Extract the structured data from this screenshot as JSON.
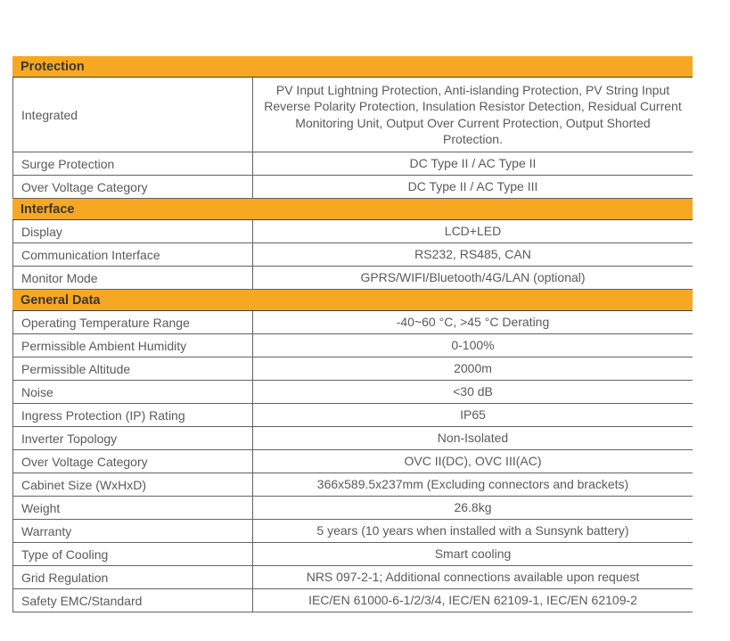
{
  "colors": {
    "section_header_bg": "#F7A823",
    "section_header_text": "#3a362f",
    "row_text": "#595a5c",
    "border": "#636363",
    "page_bg": "#ffffff"
  },
  "table": {
    "sections": [
      {
        "title": "Protection",
        "rows": [
          {
            "label": "Integrated",
            "value": "PV Input Lightning Protection, Anti-islanding Protection, PV String Input Reverse Polarity Protection, Insulation Resistor Detection, Residual Current Monitoring Unit, Output Over Current Protection, Output Shorted Protection.",
            "tall": true
          },
          {
            "label": "Surge Protection",
            "value": "DC Type II / AC Type II"
          },
          {
            "label": "Over Voltage Category",
            "value": "DC Type II / AC Type III"
          }
        ]
      },
      {
        "title": "Interface",
        "rows": [
          {
            "label": "Display",
            "value": "LCD+LED"
          },
          {
            "label": "Communication Interface",
            "value": "RS232, RS485, CAN"
          },
          {
            "label": "Monitor Mode",
            "value": "GPRS/WIFI/Bluetooth/4G/LAN (optional)"
          }
        ]
      },
      {
        "title": "General Data",
        "rows": [
          {
            "label": "Operating Temperature Range",
            "value": "-40~60 °C, >45 °C Derating"
          },
          {
            "label": "Permissible Ambient Humidity",
            "value": "0-100%"
          },
          {
            "label": "Permissible Altitude",
            "value": "2000m"
          },
          {
            "label": "Noise",
            "value": "<30 dB"
          },
          {
            "label": "Ingress Protection (IP) Rating",
            "value": "IP65"
          },
          {
            "label": "Inverter Topology",
            "value": "Non-Isolated"
          },
          {
            "label": "Over Voltage Category",
            "value": "OVC II(DC), OVC III(AC)"
          },
          {
            "label": "Cabinet Size (WxHxD)",
            "value": "366x589.5x237mm (Excluding connectors and brackets)"
          },
          {
            "label": "Weight",
            "value": "26.8kg"
          },
          {
            "label": "Warranty",
            "value": "5 years (10 years when installed with a Sunsynk battery)"
          },
          {
            "label": "Type of Cooling",
            "value": "Smart cooling"
          },
          {
            "label": "Grid Regulation",
            "value": "NRS 097-2-1; Additional connections available upon request"
          },
          {
            "label": "Safety EMC/Standard",
            "value": "IEC/EN 61000-6-1/2/3/4, IEC/EN 62109-1, IEC/EN 62109-2"
          }
        ]
      }
    ]
  }
}
